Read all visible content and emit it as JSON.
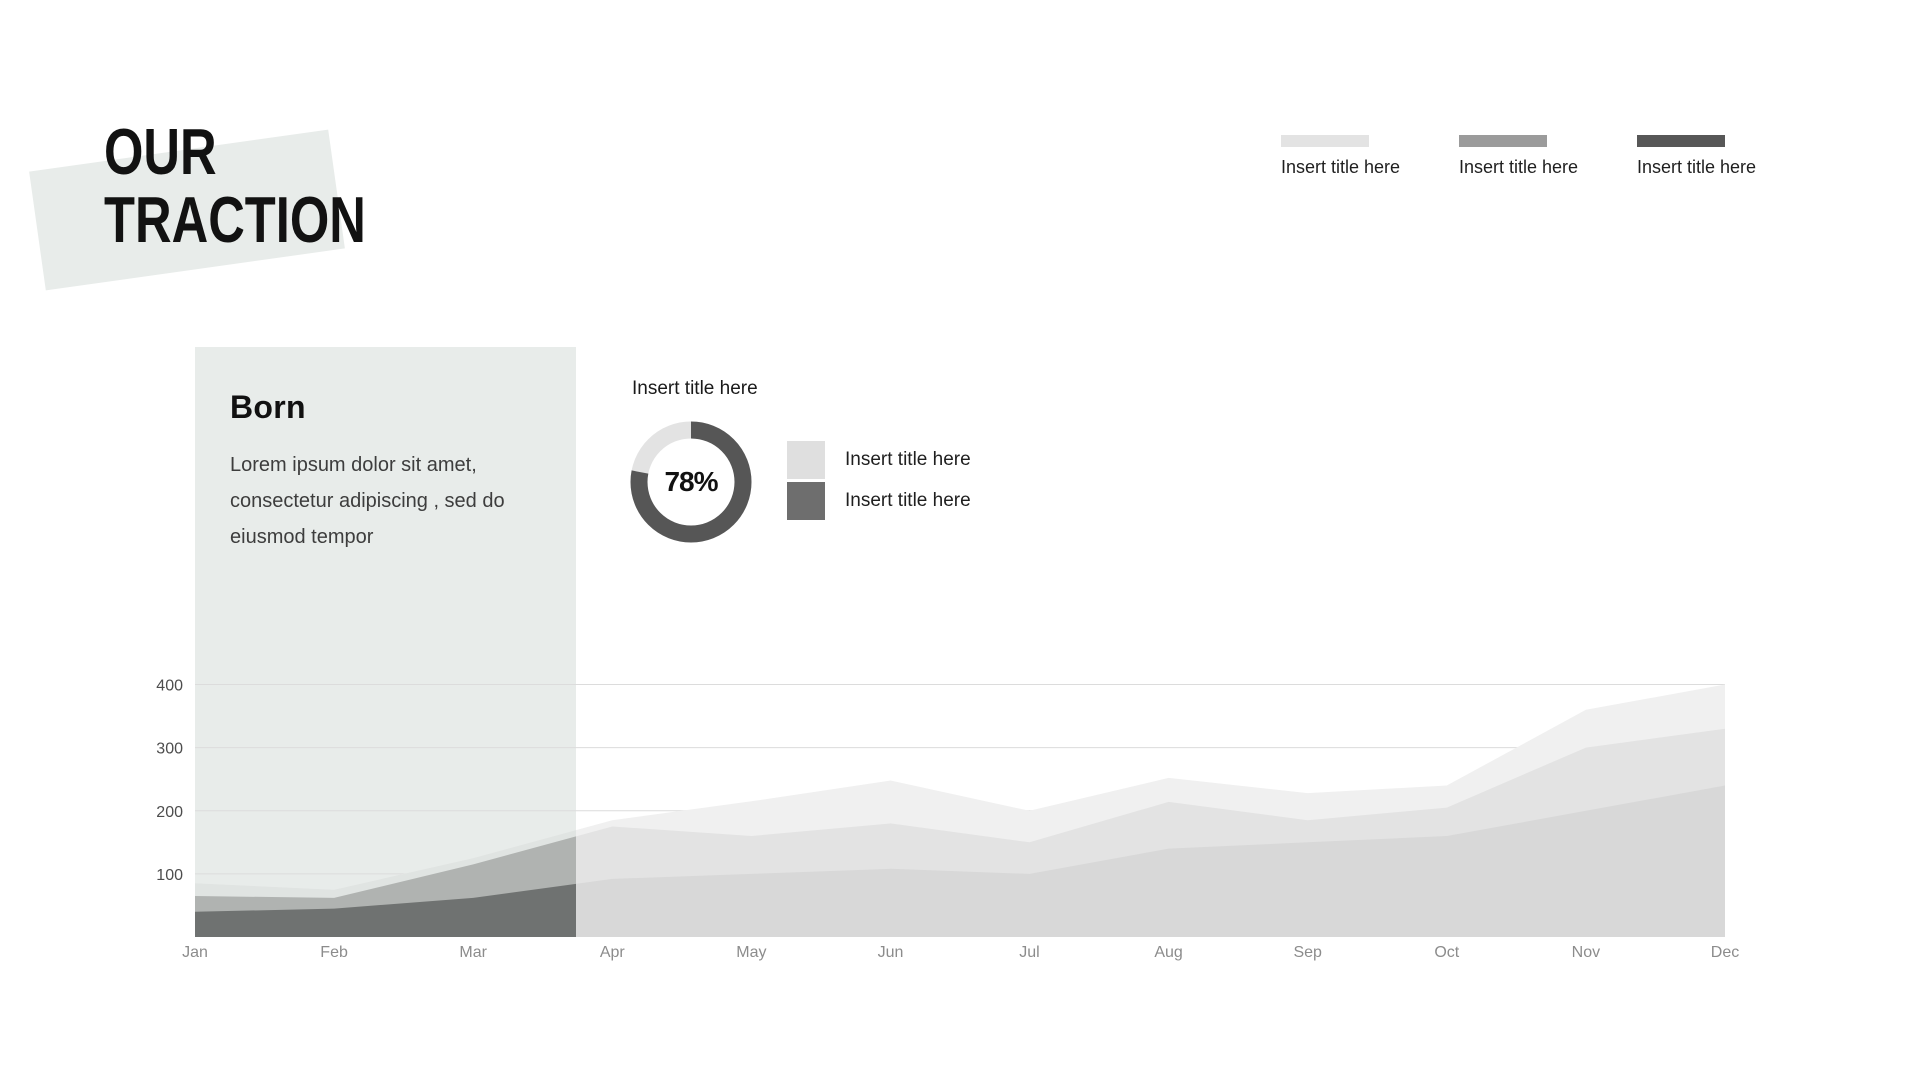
{
  "slide": {
    "title_line1": "OUR",
    "title_line2": "TRACTION"
  },
  "top_legend": {
    "items": [
      {
        "label": "Insert title here",
        "color": "#e3e3e3"
      },
      {
        "label": "Insert title here",
        "color": "#9b9b9b"
      },
      {
        "label": "Insert title here",
        "color": "#575757"
      }
    ]
  },
  "panel": {
    "heading": "Born",
    "body": "Lorem ipsum dolor sit amet, consectetur adipiscing , sed do eiusmod tempor",
    "bg_color": "#e8ecea"
  },
  "donut": {
    "title": "Insert title here",
    "percent": 78,
    "label": "78%",
    "ring_color": "#565656",
    "track_color": "#e3e3e3",
    "legend": [
      {
        "label": "Insert title here",
        "color": "#dfdfdf"
      },
      {
        "label": "Insert title here",
        "color": "#6e6e6e"
      }
    ]
  },
  "chart_data": {
    "type": "area",
    "title": "",
    "x": [
      "Jan",
      "Feb",
      "Mar",
      "Apr",
      "May",
      "Jun",
      "Jul",
      "Aug",
      "Sep",
      "Oct",
      "Nov",
      "Dec"
    ],
    "series": [
      {
        "name": "series-light",
        "values": [
          85,
          75,
          125,
          185,
          215,
          248,
          200,
          252,
          228,
          240,
          360,
          400
        ],
        "color": "#f0f0f0",
        "highlight_color": "#e0e4e2"
      },
      {
        "name": "series-medium",
        "values": [
          65,
          62,
          115,
          175,
          160,
          180,
          150,
          214,
          185,
          205,
          300,
          330
        ],
        "color": "#e3e3e3",
        "highlight_color": "#b0b3b1"
      },
      {
        "name": "series-dark",
        "values": [
          40,
          45,
          62,
          92,
          100,
          108,
          100,
          140,
          150,
          160,
          200,
          240
        ],
        "color": "#d8d8d8",
        "highlight_color": "#6f7271"
      }
    ],
    "yticks": [
      100,
      200,
      300,
      400
    ],
    "ylim": [
      0,
      400
    ],
    "grid": true,
    "legend_position": "none"
  }
}
